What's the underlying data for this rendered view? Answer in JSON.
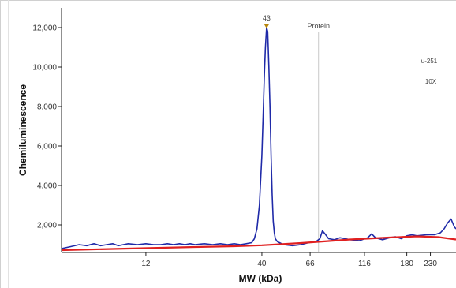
{
  "chart_data": {
    "type": "line",
    "title": "",
    "xlabel": "MW (kDa)",
    "ylabel": "Chemiluminescence",
    "x_scale": "log",
    "xlim": [
      5,
      300
    ],
    "ylim": [
      600,
      13000
    ],
    "x_ticks": [
      {
        "value": 12,
        "label": "12"
      },
      {
        "value": 40,
        "label": "40"
      },
      {
        "value": 66,
        "label": "66"
      },
      {
        "value": 116,
        "label": "116"
      },
      {
        "value": 180,
        "label": "180"
      },
      {
        "value": 230,
        "label": "230"
      }
    ],
    "y_ticks": [
      {
        "value": 2000,
        "label": "2,000"
      },
      {
        "value": 4000,
        "label": "4,000"
      },
      {
        "value": 6000,
        "label": "6,000"
      },
      {
        "value": 8000,
        "label": "8,000"
      },
      {
        "value": 10000,
        "label": "10,000"
      },
      {
        "value": 12000,
        "label": "12,000"
      }
    ],
    "grid": false,
    "series": [
      {
        "color": "#1f2aa8",
        "x": [
          5.0,
          5.5,
          6.0,
          6.5,
          7.0,
          7.5,
          8.0,
          8.5,
          9.0,
          9.5,
          10.0,
          11.0,
          12.0,
          13.0,
          14.0,
          15.0,
          16.0,
          17.0,
          18.0,
          19.0,
          20.0,
          22.0,
          24.0,
          26.0,
          28.0,
          30.0,
          32.0,
          34.0,
          36.0,
          37.0,
          38.0,
          39.0,
          40.0,
          40.5,
          41.0,
          41.5,
          42.0,
          42.5,
          43.0,
          43.5,
          44.0,
          44.5,
          45.0,
          45.5,
          46.0,
          47.0,
          48.0,
          50.0,
          55.0,
          60.0,
          65.0,
          70.0,
          73.0,
          75.0,
          77.0,
          80.0,
          85.0,
          90.0,
          95.0,
          100.0,
          110.0,
          120.0,
          125.0,
          130.0,
          140.0,
          150.0,
          160.0,
          170.0,
          180.0,
          190.0,
          200.0,
          220.0,
          240.0,
          255.0,
          265.0,
          275.0,
          285.0,
          295.0,
          300.0
        ],
        "y": [
          800,
          900,
          1000,
          950,
          1050,
          950,
          1000,
          1050,
          950,
          1000,
          1050,
          1000,
          1050,
          1000,
          1000,
          1050,
          1000,
          1050,
          1000,
          1050,
          1000,
          1050,
          1000,
          1050,
          1000,
          1050,
          1000,
          1050,
          1100,
          1300,
          1800,
          3000,
          5500,
          7500,
          9500,
          11000,
          12000,
          11800,
          10000,
          8000,
          5500,
          3500,
          2200,
          1600,
          1300,
          1150,
          1100,
          1000,
          950,
          1000,
          1100,
          1150,
          1300,
          1700,
          1550,
          1300,
          1250,
          1350,
          1300,
          1250,
          1200,
          1350,
          1550,
          1350,
          1250,
          1350,
          1400,
          1300,
          1450,
          1500,
          1450,
          1500,
          1500,
          1600,
          1800,
          2100,
          2300,
          1900,
          1800
        ]
      },
      {
        "color": "#e02020",
        "x": [
          5,
          10,
          20,
          30,
          40,
          60,
          80,
          100,
          150,
          200,
          250,
          300
        ],
        "y": [
          720,
          800,
          880,
          920,
          970,
          1080,
          1180,
          1260,
          1360,
          1420,
          1380,
          1260
        ]
      }
    ],
    "annotations": [
      {
        "label": "43",
        "x": 42
      },
      {
        "label": "Protein",
        "x": 72
      },
      {
        "label": "u-251"
      },
      {
        "label": "10X"
      }
    ]
  }
}
